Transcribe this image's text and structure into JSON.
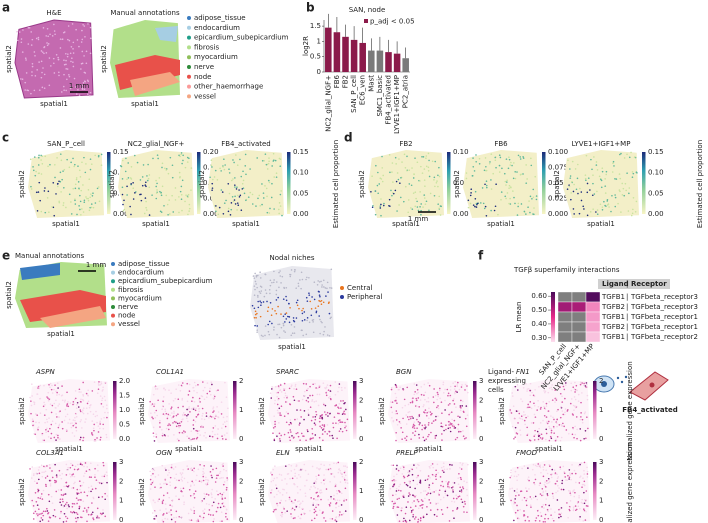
{
  "panel_labels": [
    "a",
    "b",
    "c",
    "d",
    "e",
    "f"
  ],
  "axis_labels": {
    "x": "spatial1",
    "y": "spatial2"
  },
  "scale_bar": "1 mm",
  "panel_a": {
    "titles": [
      "H&E",
      "Manual annotations"
    ],
    "legend": [
      {
        "label": "adipose_tissue",
        "color": "#3a7bbf"
      },
      {
        "label": "endocardium",
        "color": "#a6cee3"
      },
      {
        "label": "epicardium_subepicardium",
        "color": "#1f9e89"
      },
      {
        "label": "fibrosis",
        "color": "#b2df8a"
      },
      {
        "label": "myocardium",
        "color": "#8fbf5a"
      },
      {
        "label": "nerve",
        "color": "#2e8b3a"
      },
      {
        "label": "node",
        "color": "#e8514a"
      },
      {
        "label": "other_haemorrhage",
        "color": "#fb9a99"
      },
      {
        "label": "vessel",
        "color": "#f4a582"
      }
    ]
  },
  "chart_data": {
    "type": "bar",
    "title": "SAN, node",
    "y_label": "log2R",
    "legend": "p_adj < 0.05",
    "legend_color": "#8b1a4a",
    "categories": [
      "NC2_glial_NGF+",
      "FB6",
      "FB2",
      "SAN_P_cell",
      "EC6_ven",
      "Mast",
      "SMC1_basic",
      "FB4_activated",
      "LYVE1+IGF1+MP",
      "PC2_atria"
    ],
    "values": [
      1.45,
      1.3,
      1.15,
      1.05,
      0.95,
      0.7,
      0.7,
      0.65,
      0.6,
      0.45
    ],
    "errors": [
      0.45,
      0.5,
      0.4,
      0.45,
      0.5,
      0.4,
      0.45,
      0.4,
      0.4,
      0.35
    ],
    "colors": [
      "#8b1a4a",
      "#8b1a4a",
      "#8b1a4a",
      "#8b1a4a",
      "#8b1a4a",
      "#7a7a7a",
      "#7a7a7a",
      "#8b1a4a",
      "#8b1a4a",
      "#7a7a7a"
    ],
    "ylim": [
      0,
      1.7
    ],
    "yticks": [
      0,
      0.5,
      1,
      1.5
    ]
  },
  "panel_c": {
    "colorbar_label": "Estimated cell proportion",
    "maps": [
      {
        "title": "SAN_P_cell",
        "ticks": [
          "0.00",
          "0.05",
          "0.10",
          "0.15"
        ]
      },
      {
        "title": "NC2_glial_NGF+",
        "ticks": [
          "0.00",
          "0.05",
          "0.10",
          "0.15",
          "0.20"
        ]
      },
      {
        "title": "FB4_activated",
        "ticks": [
          "0.00",
          "0.05",
          "0.10",
          "0.15"
        ]
      }
    ]
  },
  "panel_d": {
    "colorbar_label": "Estimated cell proportion",
    "maps": [
      {
        "title": "FB2",
        "ticks": [
          "0.00",
          "0.05",
          "0.10"
        ]
      },
      {
        "title": "FB6",
        "ticks": [
          "0.000",
          "0.025",
          "0.050",
          "0.075",
          "0.100"
        ]
      },
      {
        "title": "LYVE1+IGF1+MP",
        "ticks": [
          "0.00",
          "0.05",
          "0.10",
          "0.15"
        ]
      }
    ]
  },
  "panel_e": {
    "annotation_title": "Manual annotations",
    "legend": [
      {
        "label": "adipose_tissue",
        "color": "#3a7bbf"
      },
      {
        "label": "endocardium",
        "color": "#a6cee3"
      },
      {
        "label": "epicardium_subepicardium",
        "color": "#1f9e89"
      },
      {
        "label": "fibrosis",
        "color": "#b2df8a"
      },
      {
        "label": "myocardium",
        "color": "#8fbf5a"
      },
      {
        "label": "nerve",
        "color": "#2e8b3a"
      },
      {
        "label": "node",
        "color": "#e8514a"
      },
      {
        "label": "vessel",
        "color": "#f4a582"
      }
    ],
    "niche_title": "Nodal niches",
    "niche_legend": [
      {
        "label": "Central",
        "color": "#e8741e"
      },
      {
        "label": "Peripheral",
        "color": "#2b3a9e"
      }
    ],
    "colorbar_label": "Normalized gene expression",
    "genes": [
      {
        "name": "ASPN",
        "ticks": [
          "0.0",
          "0.5",
          "1.0",
          "1.5",
          "2.0"
        ]
      },
      {
        "name": "COL1A1",
        "ticks": [
          "0",
          "1",
          "2"
        ]
      },
      {
        "name": "SPARC",
        "ticks": [
          "0",
          "1",
          "2",
          "3"
        ]
      },
      {
        "name": "BGN",
        "ticks": [
          "0",
          "1",
          "2",
          "3"
        ]
      },
      {
        "name": "FN1",
        "ticks": [
          "0",
          "1",
          "2"
        ]
      },
      {
        "name": "COL3A1",
        "ticks": [
          "0",
          "1",
          "2",
          "3"
        ]
      },
      {
        "name": "OGN",
        "ticks": [
          "0",
          "1",
          "2",
          "3"
        ]
      },
      {
        "name": "ELN",
        "ticks": [
          "0",
          "1",
          "2"
        ]
      },
      {
        "name": "PRELP",
        "ticks": [
          "0",
          "1",
          "2",
          "3"
        ]
      },
      {
        "name": "FMOD",
        "ticks": [
          "0",
          "1",
          "2",
          "3"
        ]
      }
    ]
  },
  "panel_f": {
    "title": "TGFβ superfamily interactions",
    "ligand_header": "Ligand",
    "receptor_header": "Receptor",
    "separator": "|",
    "colorbar_label": "LR mean",
    "clim": [
      0.27,
      0.63
    ],
    "colorbar_ticks": [
      {
        "value": 0.6,
        "label": "0.60"
      },
      {
        "value": 0.5,
        "label": "0.50"
      },
      {
        "value": 0.4,
        "label": "0.40"
      },
      {
        "value": 0.3,
        "label": "0.30"
      }
    ],
    "pairs": [
      {
        "ligand": "TGFB1",
        "receptor": "TGFbeta_receptor3"
      },
      {
        "ligand": "TGFB2",
        "receptor": "TGFbeta_receptor3"
      },
      {
        "ligand": "TGFB1",
        "receptor": "TGFbeta_receptor1"
      },
      {
        "ligand": "TGFB2",
        "receptor": "TGFbeta_receptor1"
      },
      {
        "ligand": "TGFB1",
        "receptor": "TGFbeta_receptor2"
      }
    ],
    "cell_types": [
      "SAN_P_cell",
      "NC2_glial_NGF+",
      "LYVE1+IGF1+MP"
    ],
    "values": [
      [
        null,
        null,
        0.62
      ],
      [
        0.53,
        0.52,
        0.36
      ],
      [
        null,
        null,
        0.34
      ],
      [
        null,
        null,
        0.33
      ],
      [
        null,
        null,
        0.3
      ]
    ],
    "ligand_caption": [
      "Ligand-",
      "expressing",
      "cells"
    ],
    "target": "FB4_activated"
  }
}
